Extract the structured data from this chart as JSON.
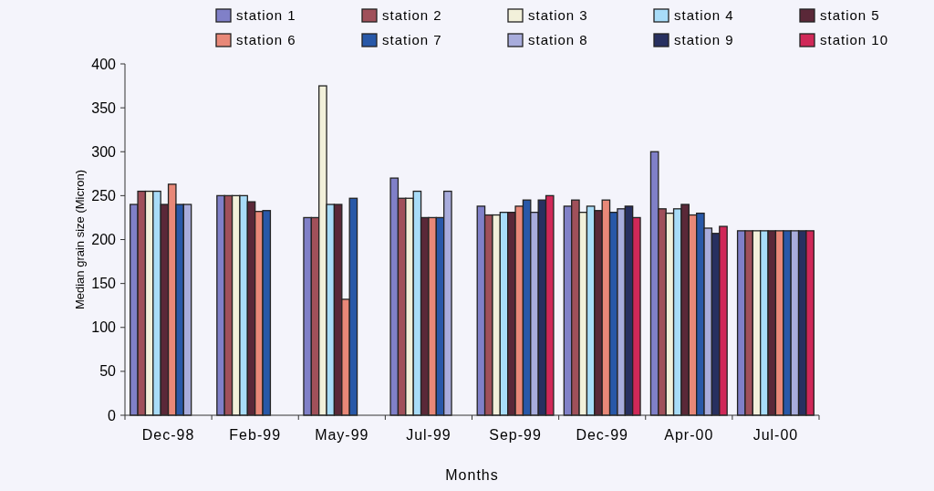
{
  "chart_data": {
    "type": "bar",
    "xlabel": "Months",
    "ylabel": "Median grain size (Micron)",
    "categories": [
      "Dec-98",
      "Feb-99",
      "May-99",
      "Jul-99",
      "Sep-99",
      "Dec-99",
      "Apr-00",
      "Jul-00"
    ],
    "series": [
      {
        "name": "station 1",
        "color": "#8080c8",
        "values": [
          240,
          250,
          225,
          270,
          238,
          238,
          300,
          210
        ]
      },
      {
        "name": "station 2",
        "color": "#a0505a",
        "values": [
          255,
          250,
          225,
          247,
          228,
          245,
          235,
          210
        ]
      },
      {
        "name": "station 3",
        "color": "#f2f0da",
        "values": [
          255,
          250,
          375,
          247,
          228,
          231,
          230,
          210
        ]
      },
      {
        "name": "station 4",
        "color": "#a8dcf8",
        "values": [
          255,
          250,
          240,
          255,
          231,
          238,
          235,
          210
        ]
      },
      {
        "name": "station 5",
        "color": "#5a2838",
        "values": [
          240,
          243,
          240,
          225,
          231,
          233,
          240,
          210
        ]
      },
      {
        "name": "station 6",
        "color": "#e88878",
        "values": [
          263,
          232,
          132,
          225,
          238,
          245,
          228,
          210
        ]
      },
      {
        "name": "station 7",
        "color": "#2858a8",
        "values": [
          240,
          233,
          247,
          225,
          245,
          231,
          230,
          210
        ]
      },
      {
        "name": "station 8",
        "color": "#a8acdc",
        "values": [
          240,
          null,
          null,
          255,
          231,
          235,
          213,
          210
        ]
      },
      {
        "name": "station 9",
        "color": "#283060",
        "values": [
          null,
          null,
          null,
          null,
          245,
          238,
          207,
          210
        ]
      },
      {
        "name": "station 10",
        "color": "#d02858",
        "values": [
          null,
          null,
          null,
          null,
          250,
          225,
          215,
          210
        ]
      }
    ],
    "ylim": [
      0,
      400
    ],
    "yticks": [
      0,
      50,
      100,
      150,
      200,
      250,
      300,
      350,
      400
    ],
    "grid": false,
    "legend": "top"
  }
}
